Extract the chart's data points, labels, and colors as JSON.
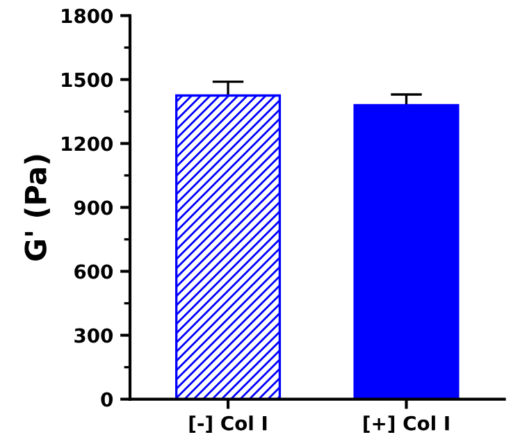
{
  "chart_data": {
    "type": "bar",
    "ylabel": "G' (Pa)",
    "categories": [
      "[-] Col Ⅰ",
      "[+] Col Ⅰ"
    ],
    "series": [
      {
        "color": "#0000ff",
        "values": [
          1425,
          1380
        ],
        "errors": [
          65,
          50
        ]
      }
    ],
    "ylim": [
      0,
      1800
    ],
    "yticks": [
      0,
      300,
      600,
      900,
      1200,
      1500,
      1800
    ],
    "grid": false,
    "legend": false
  }
}
